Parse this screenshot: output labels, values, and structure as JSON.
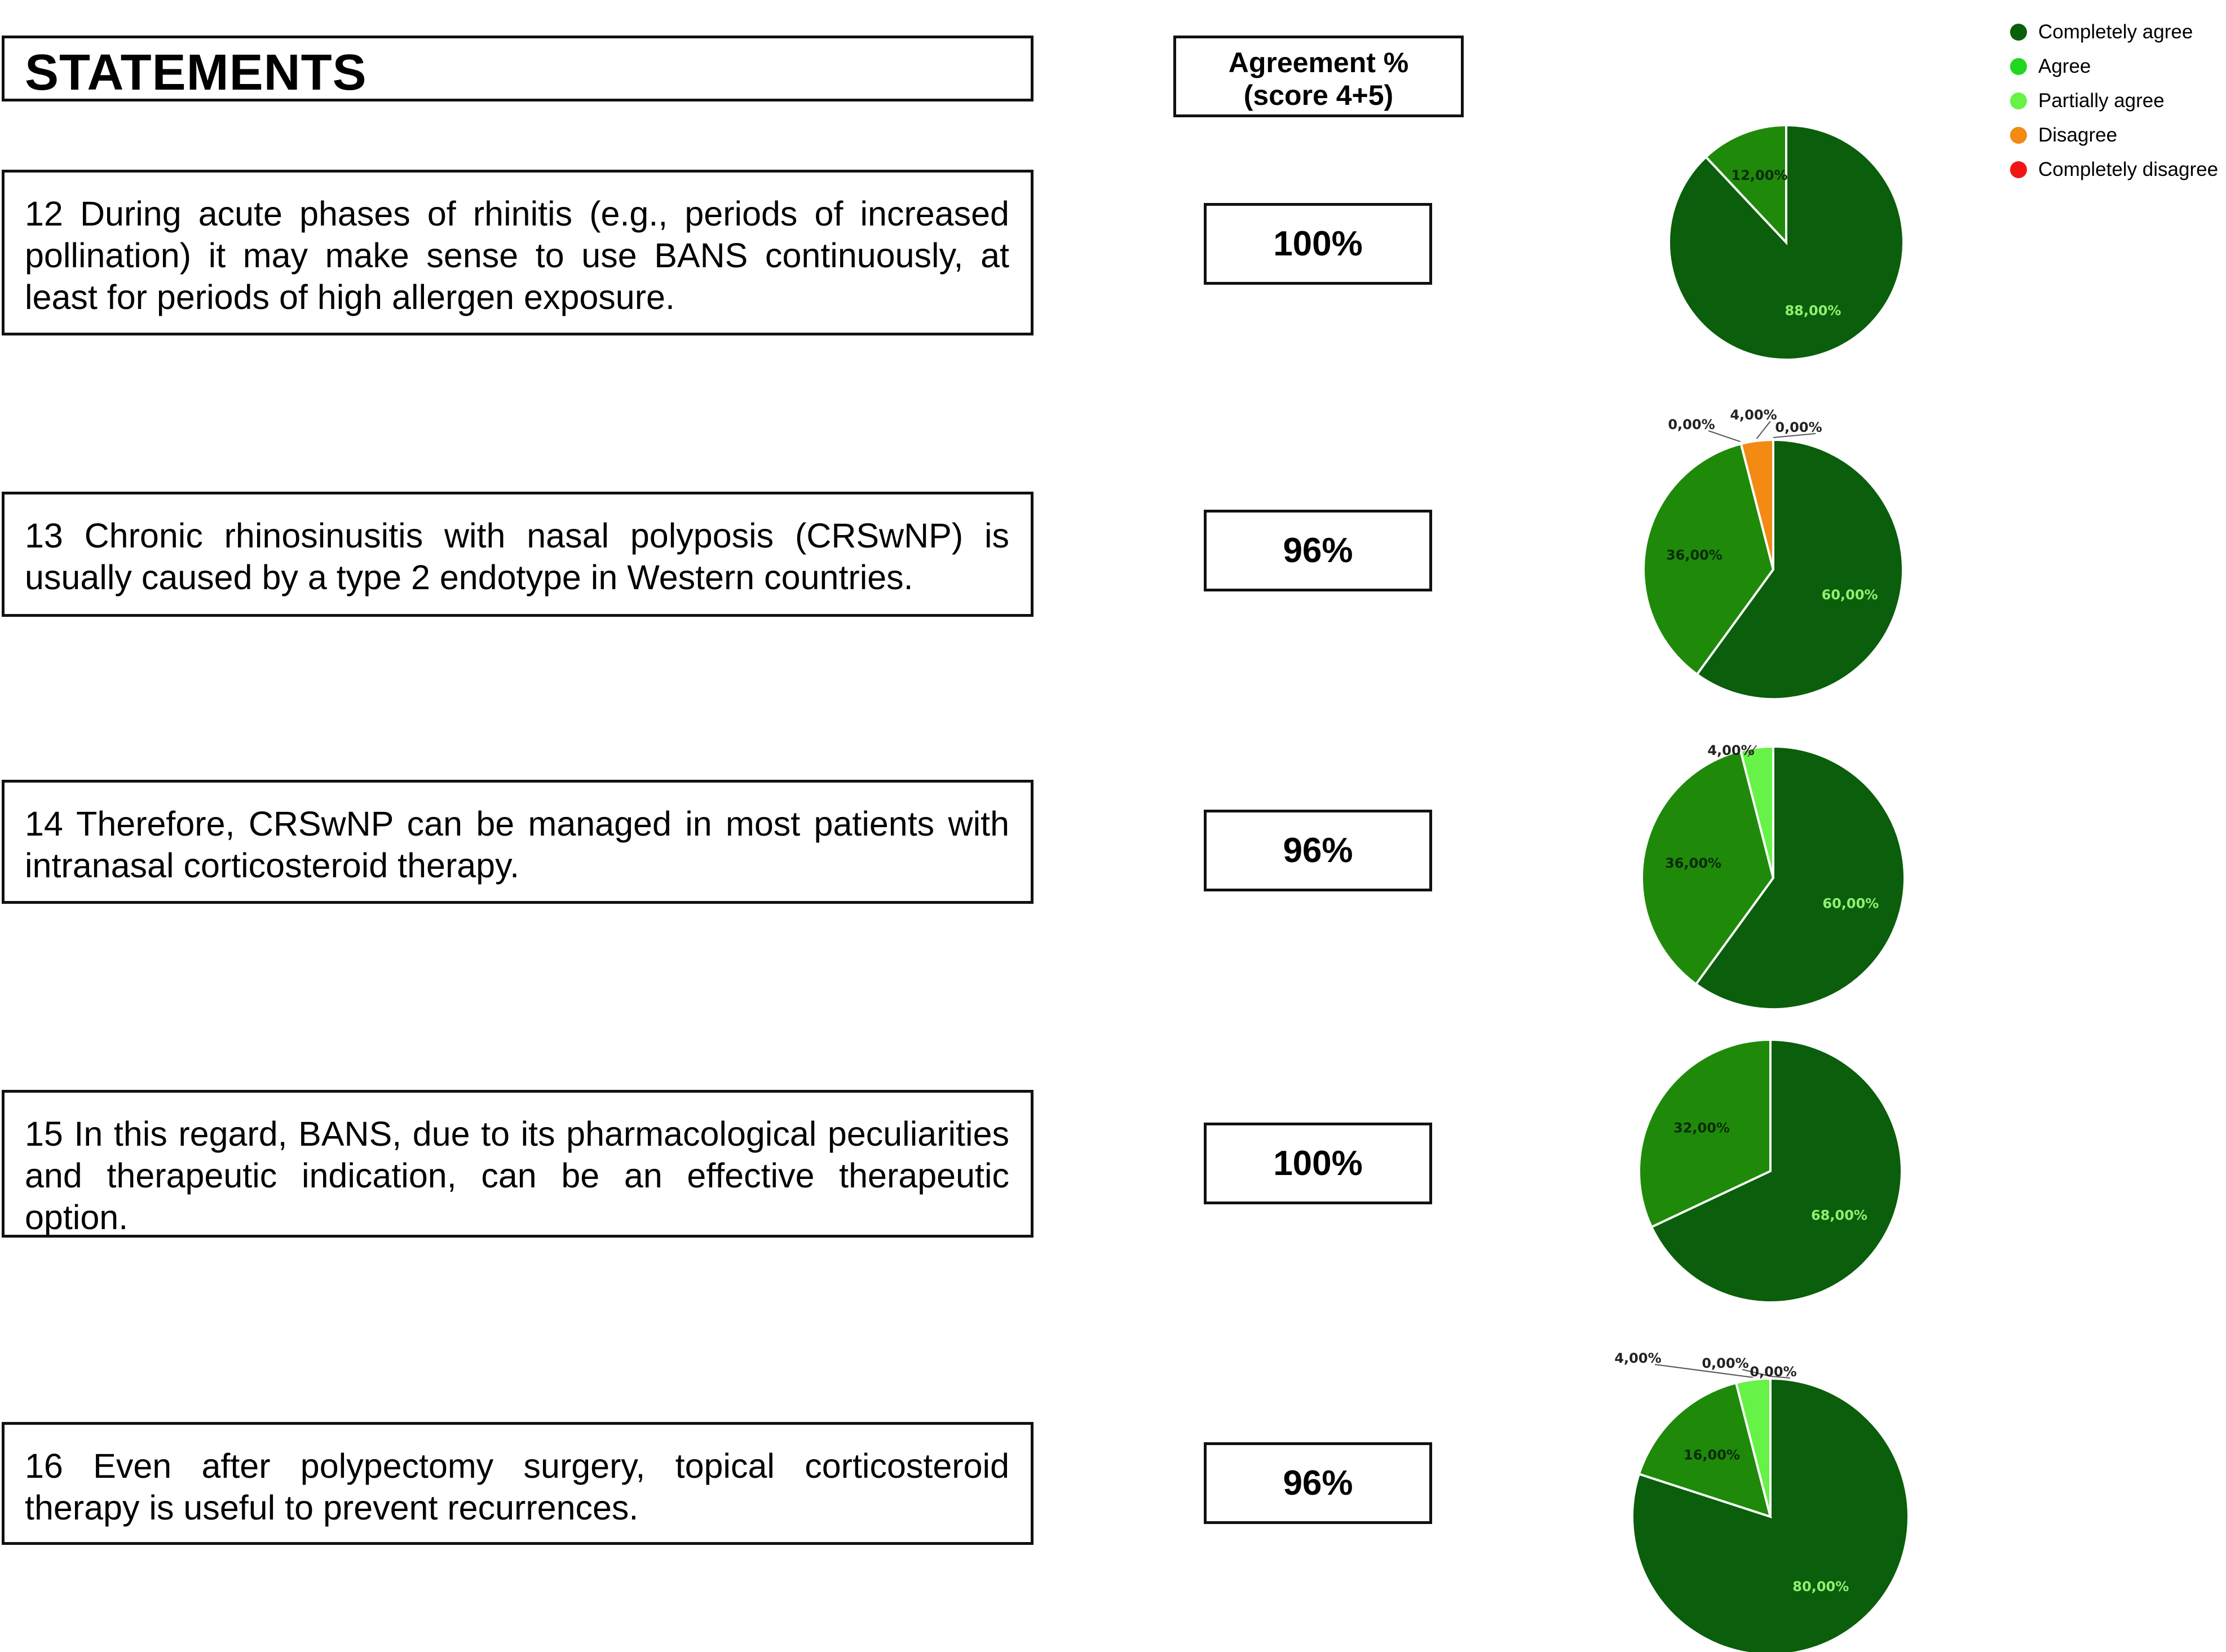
{
  "header": {
    "statements_title": "STATEMENTS",
    "agreement_line1": "Agreement %",
    "agreement_line2": "(score 4+5)"
  },
  "statements": [
    {
      "text": "12 During acute phases of rhinitis (e.g., periods of increased pollination) it may make sense to use BANS continuously, at least for periods of high allergen exposure.",
      "agreement": "100%"
    },
    {
      "text": "13 Chronic rhinosinusitis with nasal polyposis (CRSwNP) is usually caused by a type 2 endotype in Western countries.",
      "agreement": "96%"
    },
    {
      "text": "14 Therefore, CRSwNP can be managed in most patients with intranasal corticosteroid therapy.",
      "agreement": "96%"
    },
    {
      "text": "15 In this regard, BANS, due to its pharmacological peculiarities and therapeutic indication, can be an effective therapeutic option.",
      "agreement": "100%"
    },
    {
      "text": "16 Even after polypectomy surgery, topical corticosteroid therapy is useful to prevent recurrences.",
      "agreement": "96%"
    }
  ],
  "colors": {
    "completely_agree": "#0b5e0b",
    "agree": "#1f8a0a",
    "partially_agree": "#66f246",
    "disagree": "#f28a14",
    "completely_disagree": "#f21515",
    "inside_label": "#90f070"
  },
  "chart_data": {
    "type": "pie",
    "legend": {
      "position": "top-right",
      "entries": [
        "Completely agree",
        "Agree",
        "Partially agree",
        "Disagree",
        "Completely disagree"
      ]
    },
    "charts": [
      {
        "statement": "12",
        "slices": [
          {
            "category": "Completely agree",
            "value": 88,
            "label": "88,00%"
          },
          {
            "category": "Agree",
            "value": 12,
            "label": "12,00%"
          }
        ]
      },
      {
        "statement": "13",
        "slices": [
          {
            "category": "Completely agree",
            "value": 60,
            "label": "60,00%"
          },
          {
            "category": "Agree",
            "value": 36,
            "label": "36,00%"
          },
          {
            "category": "Partially agree",
            "value": 0,
            "label": "0,00%"
          },
          {
            "category": "Disagree",
            "value": 4,
            "label": "4,00%"
          },
          {
            "category": "Completely disagree",
            "value": 0,
            "label": "0,00%"
          }
        ]
      },
      {
        "statement": "14",
        "slices": [
          {
            "category": "Completely agree",
            "value": 60,
            "label": "60,00%"
          },
          {
            "category": "Agree",
            "value": 36,
            "label": "36,00%"
          },
          {
            "category": "Partially agree",
            "value": 4,
            "label": "4,00%"
          }
        ]
      },
      {
        "statement": "15",
        "slices": [
          {
            "category": "Completely agree",
            "value": 68,
            "label": "68,00%"
          },
          {
            "category": "Agree",
            "value": 32,
            "label": "32,00%"
          }
        ]
      },
      {
        "statement": "16",
        "slices": [
          {
            "category": "Completely agree",
            "value": 80,
            "label": "80,00%"
          },
          {
            "category": "Agree",
            "value": 16,
            "label": "16,00%"
          },
          {
            "category": "Partially agree",
            "value": 4,
            "label": "4,00%"
          },
          {
            "category": "Disagree",
            "value": 0,
            "label": "0,00%"
          },
          {
            "category": "Completely disagree",
            "value": 0,
            "label": "0,00%"
          }
        ]
      }
    ]
  }
}
